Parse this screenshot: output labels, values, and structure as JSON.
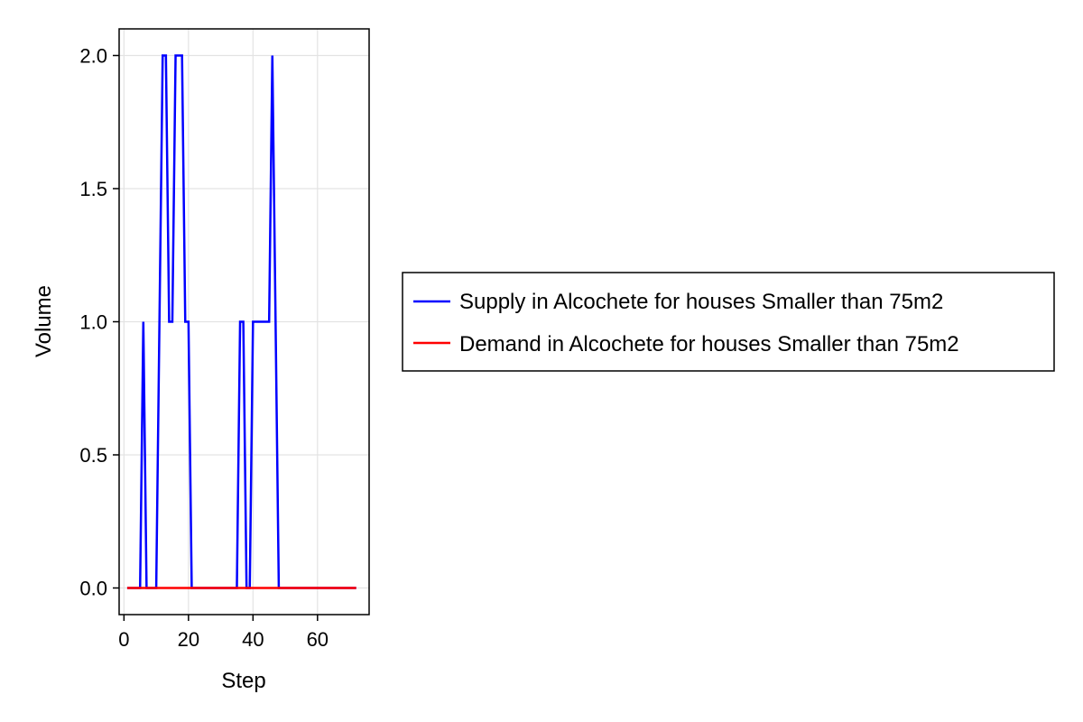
{
  "chart_data": {
    "type": "line",
    "title": "",
    "xlabel": "Step",
    "ylabel": "Volume",
    "xlim": [
      -1.5,
      76
    ],
    "ylim": [
      -0.1,
      2.1
    ],
    "x_ticks": [
      0,
      20,
      40,
      60
    ],
    "y_ticks": [
      0.0,
      0.5,
      1.0,
      1.5,
      2.0
    ],
    "x_tick_labels": [
      "0",
      "20",
      "40",
      "60"
    ],
    "y_tick_labels": [
      "0.0",
      "0.5",
      "1.0",
      "1.5",
      "2.0"
    ],
    "grid": true,
    "legend_position": "right",
    "series": [
      {
        "name": "Supply in Alcochete for houses Smaller than 75m2",
        "color": "#0000ff",
        "x": [
          1,
          5,
          6,
          7,
          10,
          12,
          13,
          14,
          15,
          16,
          17,
          18,
          19,
          20,
          21,
          35,
          36,
          37,
          38,
          39,
          40,
          41,
          42,
          43,
          44,
          45,
          46,
          47,
          48,
          72
        ],
        "y": [
          0,
          0,
          1,
          0,
          0,
          2,
          2,
          1,
          1,
          2,
          2,
          2,
          1,
          1,
          0,
          0,
          1,
          1,
          0,
          0,
          1,
          1,
          1,
          1,
          1,
          1,
          2,
          1,
          0,
          0
        ]
      },
      {
        "name": "Demand in Alcochete for houses Smaller than 75m2",
        "color": "#ff0000",
        "x": [
          1,
          72
        ],
        "y": [
          0,
          0
        ]
      }
    ]
  }
}
